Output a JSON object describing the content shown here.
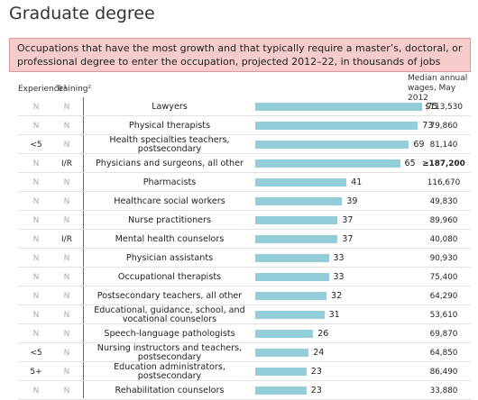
{
  "title": "Graduate degree",
  "subtitle": "Occupations that have the most growth and that typically require a master’s, doctoral, or professional degree to enter the occupation, projected 2012–22, in thousands of jobs",
  "chart_data": {
    "type": "bar",
    "orientation": "horizontal",
    "color": "#93cdda",
    "headers": {
      "experience": "Experience¹",
      "training": "Training²",
      "wages": "Median annual wages, May 2012"
    },
    "categories": [
      "Lawyers",
      "Physical therapists",
      "Health specialties teachers, postsecondary",
      "Physicians and surgeons, all other",
      "Pharmacists",
      "Healthcare social workers",
      "Nurse practitioners",
      "Mental health counselors",
      "Physician assistants",
      "Occupational therapists",
      "Postsecondary teachers, all other",
      "Educational, guidance, school, and vocational counselors",
      "Speech-language pathologists",
      "Nursing instructors and teachers, postsecondary",
      "Education administrators, postsecondary",
      "Rehabilitation counselors"
    ],
    "values": [
      75,
      73,
      69,
      65,
      41,
      39,
      37,
      37,
      33,
      33,
      32,
      31,
      26,
      24,
      23,
      23
    ],
    "experience": [
      "N",
      "N",
      "<5",
      "N",
      "N",
      "N",
      "N",
      "N",
      "N",
      "N",
      "N",
      "N",
      "N",
      "<5",
      "5+",
      "N"
    ],
    "training": [
      "N",
      "N",
      "N",
      "I/R",
      "N",
      "N",
      "N",
      "I/R",
      "N",
      "N",
      "N",
      "N",
      "N",
      "N",
      "N",
      "N"
    ],
    "wages": [
      "$113,530",
      "79,860",
      "81,140",
      "≥187,200",
      "116,670",
      "49,830",
      "89,960",
      "40,080",
      "90,930",
      "75,400",
      "64,290",
      "53,610",
      "69,870",
      "64,850",
      "86,490",
      "33,880"
    ]
  }
}
